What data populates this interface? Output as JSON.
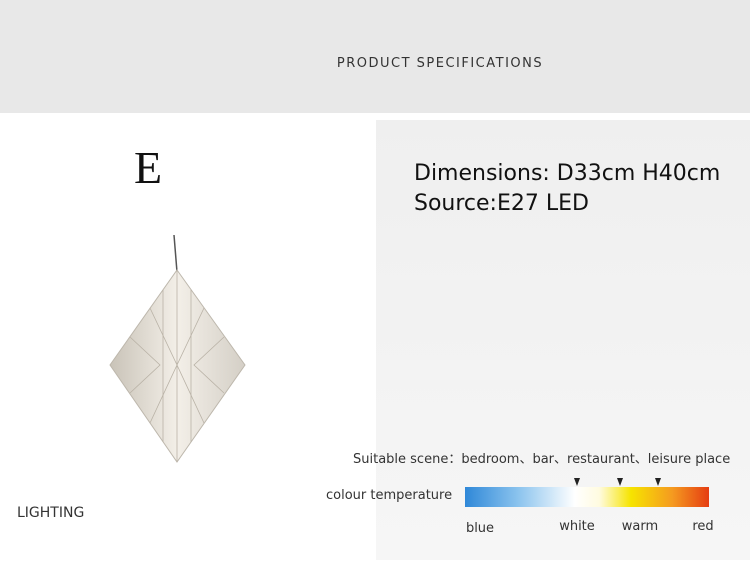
{
  "header": {
    "title": "PRODUCT SPECIFICATIONS"
  },
  "product": {
    "model": "E",
    "category": "LIGHTING"
  },
  "specs": {
    "dimensions": "Dimensions: D33cm H40cm",
    "source": "Source:E27 LED"
  },
  "scene": "Suitable scene：bedroom、bar、restaurant、leisure place",
  "colour_temperature": {
    "label": "colour temperature",
    "stops": [
      "blue",
      "white",
      "warm",
      "red"
    ]
  }
}
